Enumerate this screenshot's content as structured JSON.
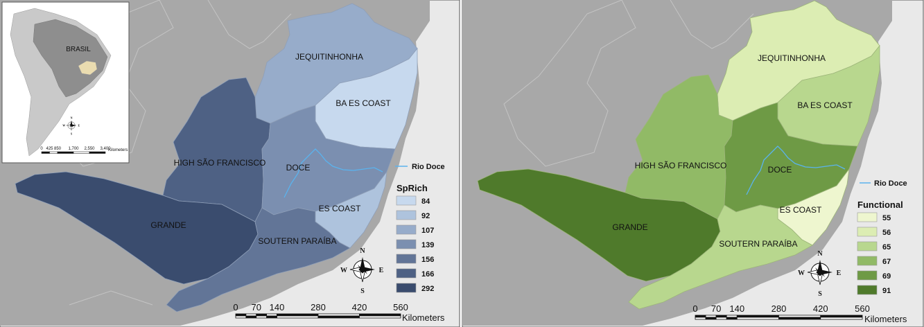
{
  "inset": {
    "country_label": "BRASIL",
    "scale_ticks": [
      "0",
      "425",
      "850",
      "1,700",
      "2,550",
      "3,400"
    ],
    "scale_unit": "Kilometers",
    "compass": {
      "n": "N",
      "s": "S",
      "e": "E",
      "w": "W"
    }
  },
  "maps": [
    {
      "regions": {
        "jequitinhonha": "JEQUITINHONHA",
        "ba_es_coast": "BA ES COAST",
        "high_sao_francisco": "HIGH SÃO FRANCISCO",
        "doce": "DOCE",
        "es_coast": "ES COAST",
        "grande": "GRANDE",
        "southern_paraiba": "SOUTERN PARAÍBA"
      },
      "river_label": "Rio Doce",
      "legend": {
        "title": "SpRich",
        "items": [
          {
            "label": "84",
            "color": "#c7d9ee"
          },
          {
            "label": "92",
            "color": "#aec3dd"
          },
          {
            "label": "107",
            "color": "#97acca"
          },
          {
            "label": "139",
            "color": "#7b8fb0"
          },
          {
            "label": "156",
            "color": "#627597"
          },
          {
            "label": "166",
            "color": "#4e6184"
          },
          {
            "label": "292",
            "color": "#3a4c6e"
          }
        ]
      },
      "region_values": {
        "jequitinhonha": 107,
        "ba_es_coast": 84,
        "high_sao_francisco": 166,
        "doce": 139,
        "es_coast": 92,
        "grande": 292,
        "southern_paraiba": 156
      },
      "compass": {
        "n": "N",
        "s": "S",
        "e": "E",
        "w": "W"
      },
      "scale": {
        "ticks": [
          "0",
          "70",
          "140",
          "280",
          "420",
          "560"
        ],
        "unit": "Kilometers"
      }
    },
    {
      "regions": {
        "jequitinhonha": "JEQUITINHONHA",
        "ba_es_coast": "BA ES COAST",
        "high_sao_francisco": "HIGH SÃO FRANCISCO",
        "doce": "DOCE",
        "es_coast": "ES COAST",
        "grande": "GRANDE",
        "southern_paraiba": "SOUTERN PARAÍBA"
      },
      "river_label": "Rio Doce",
      "legend": {
        "title": "Functional",
        "items": [
          {
            "label": "55",
            "color": "#eef6cf"
          },
          {
            "label": "56",
            "color": "#dcedb3"
          },
          {
            "label": "65",
            "color": "#b8d78e"
          },
          {
            "label": "67",
            "color": "#91ba66"
          },
          {
            "label": "69",
            "color": "#6e9a45"
          },
          {
            "label": "91",
            "color": "#4f7a2b"
          }
        ]
      },
      "region_values": {
        "jequitinhonha": 56,
        "ba_es_coast": 65,
        "high_sao_francisco": 67,
        "doce": 69,
        "es_coast": 55,
        "grande": 91,
        "southern_paraiba": 65
      },
      "compass": {
        "n": "N",
        "s": "S",
        "e": "E",
        "w": "W"
      },
      "scale": {
        "ticks": [
          "0",
          "70",
          "140",
          "280",
          "420",
          "560"
        ],
        "unit": "Kilometers"
      }
    }
  ]
}
